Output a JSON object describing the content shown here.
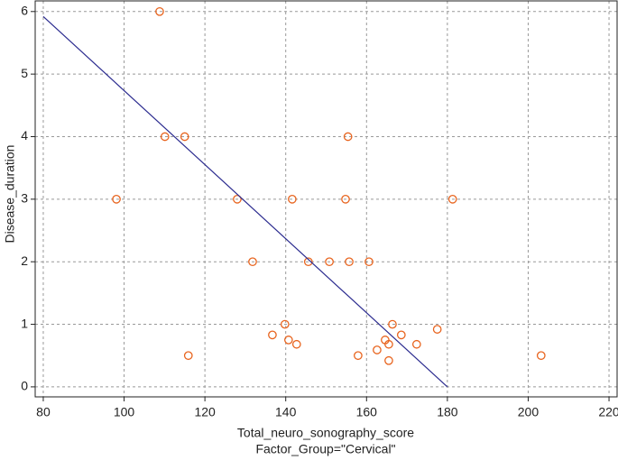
{
  "chart_data": {
    "type": "scatter",
    "x_label": "Total_neuro_sonography_score",
    "subtitle": "Factor_Group=\"Cervical\"",
    "y_label": "Disease_duration",
    "xlim": [
      78,
      222
    ],
    "ylim": [
      -0.16,
      6.17
    ],
    "xticks": [
      80,
      100,
      120,
      140,
      160,
      180,
      200,
      220
    ],
    "yticks": [
      0,
      1,
      2,
      3,
      4,
      5,
      6
    ],
    "grid": true,
    "series": [
      {
        "color": "#e8641e",
        "x": [
          108.8,
          110.1,
          115.0,
          155.4,
          98.1,
          128.0,
          141.6,
          154.8,
          181.3,
          131.8,
          145.6,
          150.8,
          155.7,
          160.6,
          139.8,
          166.4,
          136.7,
          140.7,
          142.7,
          168.6,
          177.5,
          172.4,
          164.6,
          165.5,
          162.6,
          157.9,
          165.5,
          115.9,
          203.2
        ],
        "values": [
          6,
          4,
          4,
          4,
          3,
          3,
          3,
          3,
          3,
          2,
          2,
          2,
          2,
          2,
          1,
          1,
          0.83,
          0.75,
          0.68,
          0.83,
          0.92,
          0.68,
          0.75,
          0.68,
          0.59,
          0.5,
          0.42,
          0.5,
          0.5
        ]
      }
    ],
    "fit_line": {
      "color": "#2b2b8f",
      "x": [
        80,
        180
      ],
      "values": [
        5.92,
        0
      ]
    }
  }
}
